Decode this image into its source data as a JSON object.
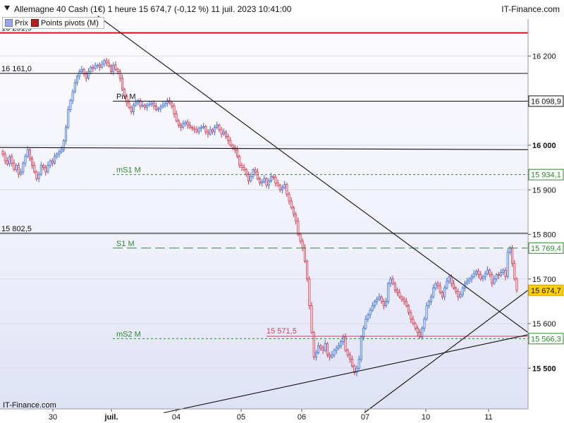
{
  "header": {
    "title": "Allemagne 40 Cash (1€) 1 heure 15 674,7 (-0,12 %) 11 juil. 2023 10:41:00",
    "brand": "IT-Finance.com"
  },
  "legend": [
    {
      "label": "Prix",
      "color": "#9aa6e6"
    },
    {
      "label": "Points pivots (M)",
      "color": "#b22020"
    }
  ],
  "footer_brand": "IT-Finance.com",
  "chart_data": {
    "type": "candlestick",
    "instrument": "Allemagne 40 Cash (1€)",
    "timeframe": "1 heure",
    "last_price_text": "15 674,7",
    "change_text": "(-0,12 %)",
    "timestamp_text": "11 juil. 2023 10:41:00",
    "ylim": [
      15400,
      16300
    ],
    "y_ticks": [
      {
        "value": 16200,
        "label": "16 200"
      },
      {
        "value": 16000,
        "label": "16 000",
        "bold": true
      },
      {
        "value": 15900,
        "label": "15 900"
      },
      {
        "value": 15800,
        "label": "15 800"
      },
      {
        "value": 15700,
        "label": "15 700"
      },
      {
        "value": 15600,
        "label": "15 600"
      },
      {
        "value": 15500,
        "label": "15 500",
        "bold": true
      }
    ],
    "x_labels": [
      {
        "label": "30",
        "bold": false
      },
      {
        "label": "juil.",
        "bold": true
      },
      {
        "label": "04",
        "bold": false
      },
      {
        "label": "05",
        "bold": false
      },
      {
        "label": "06",
        "bold": false
      },
      {
        "label": "07",
        "bold": false
      },
      {
        "label": "10",
        "bold": false
      },
      {
        "label": "11",
        "bold": false
      }
    ],
    "levels": [
      {
        "value": 16251.9,
        "label": "16 251,9",
        "color": "#e01010",
        "style": "solid",
        "side": "left"
      },
      {
        "value": 16161.0,
        "label": "16 161,0",
        "color": "#111111",
        "style": "solid",
        "side": "left"
      },
      {
        "value": 16098.9,
        "label": "16 098,9",
        "name": "Piv M",
        "color": "#111111",
        "style": "solid",
        "side": "right"
      },
      {
        "value": 15934.1,
        "label": "15 934,1",
        "name": "mS1 M",
        "color": "#2e8a2e",
        "style": "dashed",
        "side": "right"
      },
      {
        "value": 15802.5,
        "label": "15 802,5",
        "color": "#111111",
        "style": "solid",
        "side": "left"
      },
      {
        "value": 15769.4,
        "label": "15 769,4",
        "name": "S1 M",
        "color": "#2e8a2e",
        "style": "longdash",
        "side": "right"
      },
      {
        "value": 15571.5,
        "label": "15 571,5",
        "color": "#d04060",
        "style": "solid",
        "side": "inline"
      },
      {
        "value": 15566.3,
        "label": "15 566,3",
        "name": "mS2 M",
        "color": "#2e8a2e",
        "style": "dashed",
        "side": "right"
      }
    ],
    "price_badge": {
      "value": 15674.7,
      "label": "15 674,7",
      "color": "#ffd000"
    },
    "trendlines": [
      {
        "from": [
          0,
          15995
        ],
        "to": [
          1.0,
          15990
        ],
        "color": "#111111"
      },
      {
        "from": [
          0.185,
          16290
        ],
        "to": [
          1.0,
          15580
        ],
        "color": "#111111"
      },
      {
        "from": [
          0.31,
          15400
        ],
        "to": [
          1.0,
          15575
        ],
        "color": "#111111"
      },
      {
        "from": [
          0.69,
          15400
        ],
        "to": [
          1.0,
          15675
        ],
        "color": "#111111"
      }
    ],
    "closes": [
      15980,
      15965,
      15958,
      15975,
      15960,
      15945,
      15955,
      15935,
      15940,
      15960,
      15975,
      15990,
      15970,
      15955,
      15940,
      15925,
      15935,
      15955,
      15950,
      15940,
      15955,
      15965,
      15960,
      15975,
      15980,
      15985,
      15990,
      16010,
      16040,
      16080,
      16100,
      16120,
      16140,
      16155,
      16165,
      16170,
      16160,
      16150,
      16165,
      16175,
      16172,
      16178,
      16180,
      16175,
      16182,
      16190,
      16185,
      16178,
      16165,
      16180,
      16170,
      16165,
      16150,
      16125,
      16110,
      16095,
      16085,
      16075,
      16090,
      16095,
      16100,
      16088,
      16090,
      16085,
      16090,
      16092,
      16095,
      16088,
      16080,
      16082,
      16086,
      16090,
      16094,
      16100,
      16095,
      16088,
      16070,
      16055,
      16045,
      16040,
      16048,
      16052,
      16045,
      16040,
      16038,
      16035,
      16030,
      16038,
      16040,
      16042,
      16030,
      16025,
      16035,
      16030,
      16040,
      16045,
      16035,
      16025,
      16030,
      16020,
      16010,
      16000,
      15995,
      15990,
      15975,
      15955,
      15950,
      15945,
      15935,
      15920,
      15930,
      15945,
      15940,
      15925,
      15915,
      15918,
      15925,
      15910,
      15920,
      15930,
      15928,
      15915,
      15910,
      15900,
      15905,
      15912,
      15890,
      15875,
      15860,
      15845,
      15830,
      15800,
      15785,
      15770,
      15740,
      15700,
      15640,
      15580,
      15525,
      15535,
      15550,
      15545,
      15540,
      15555,
      15530,
      15525,
      15530,
      15540,
      15545,
      15550,
      15560,
      15570,
      15540,
      15530,
      15520,
      15505,
      15490,
      15500,
      15520,
      15570,
      15590,
      15610,
      15620,
      15630,
      15640,
      15650,
      15655,
      15660,
      15650,
      15640,
      15650,
      15690,
      15700,
      15690,
      15675,
      15670,
      15660,
      15655,
      15650,
      15640,
      15625,
      15610,
      15600,
      15590,
      15580,
      15570,
      15590,
      15610,
      15640,
      15650,
      15660,
      15680,
      15690,
      15685,
      15670,
      15660,
      15680,
      15695,
      15705,
      15690,
      15680,
      15672,
      15660,
      15665,
      15680,
      15690,
      15695,
      15700,
      15705,
      15712,
      15718,
      15710,
      15700,
      15705,
      15712,
      15720,
      15710,
      15690,
      15700,
      15710,
      15708,
      15715,
      15720,
      15705,
      15760,
      15770,
      15735,
      15700,
      15674.7
    ]
  }
}
